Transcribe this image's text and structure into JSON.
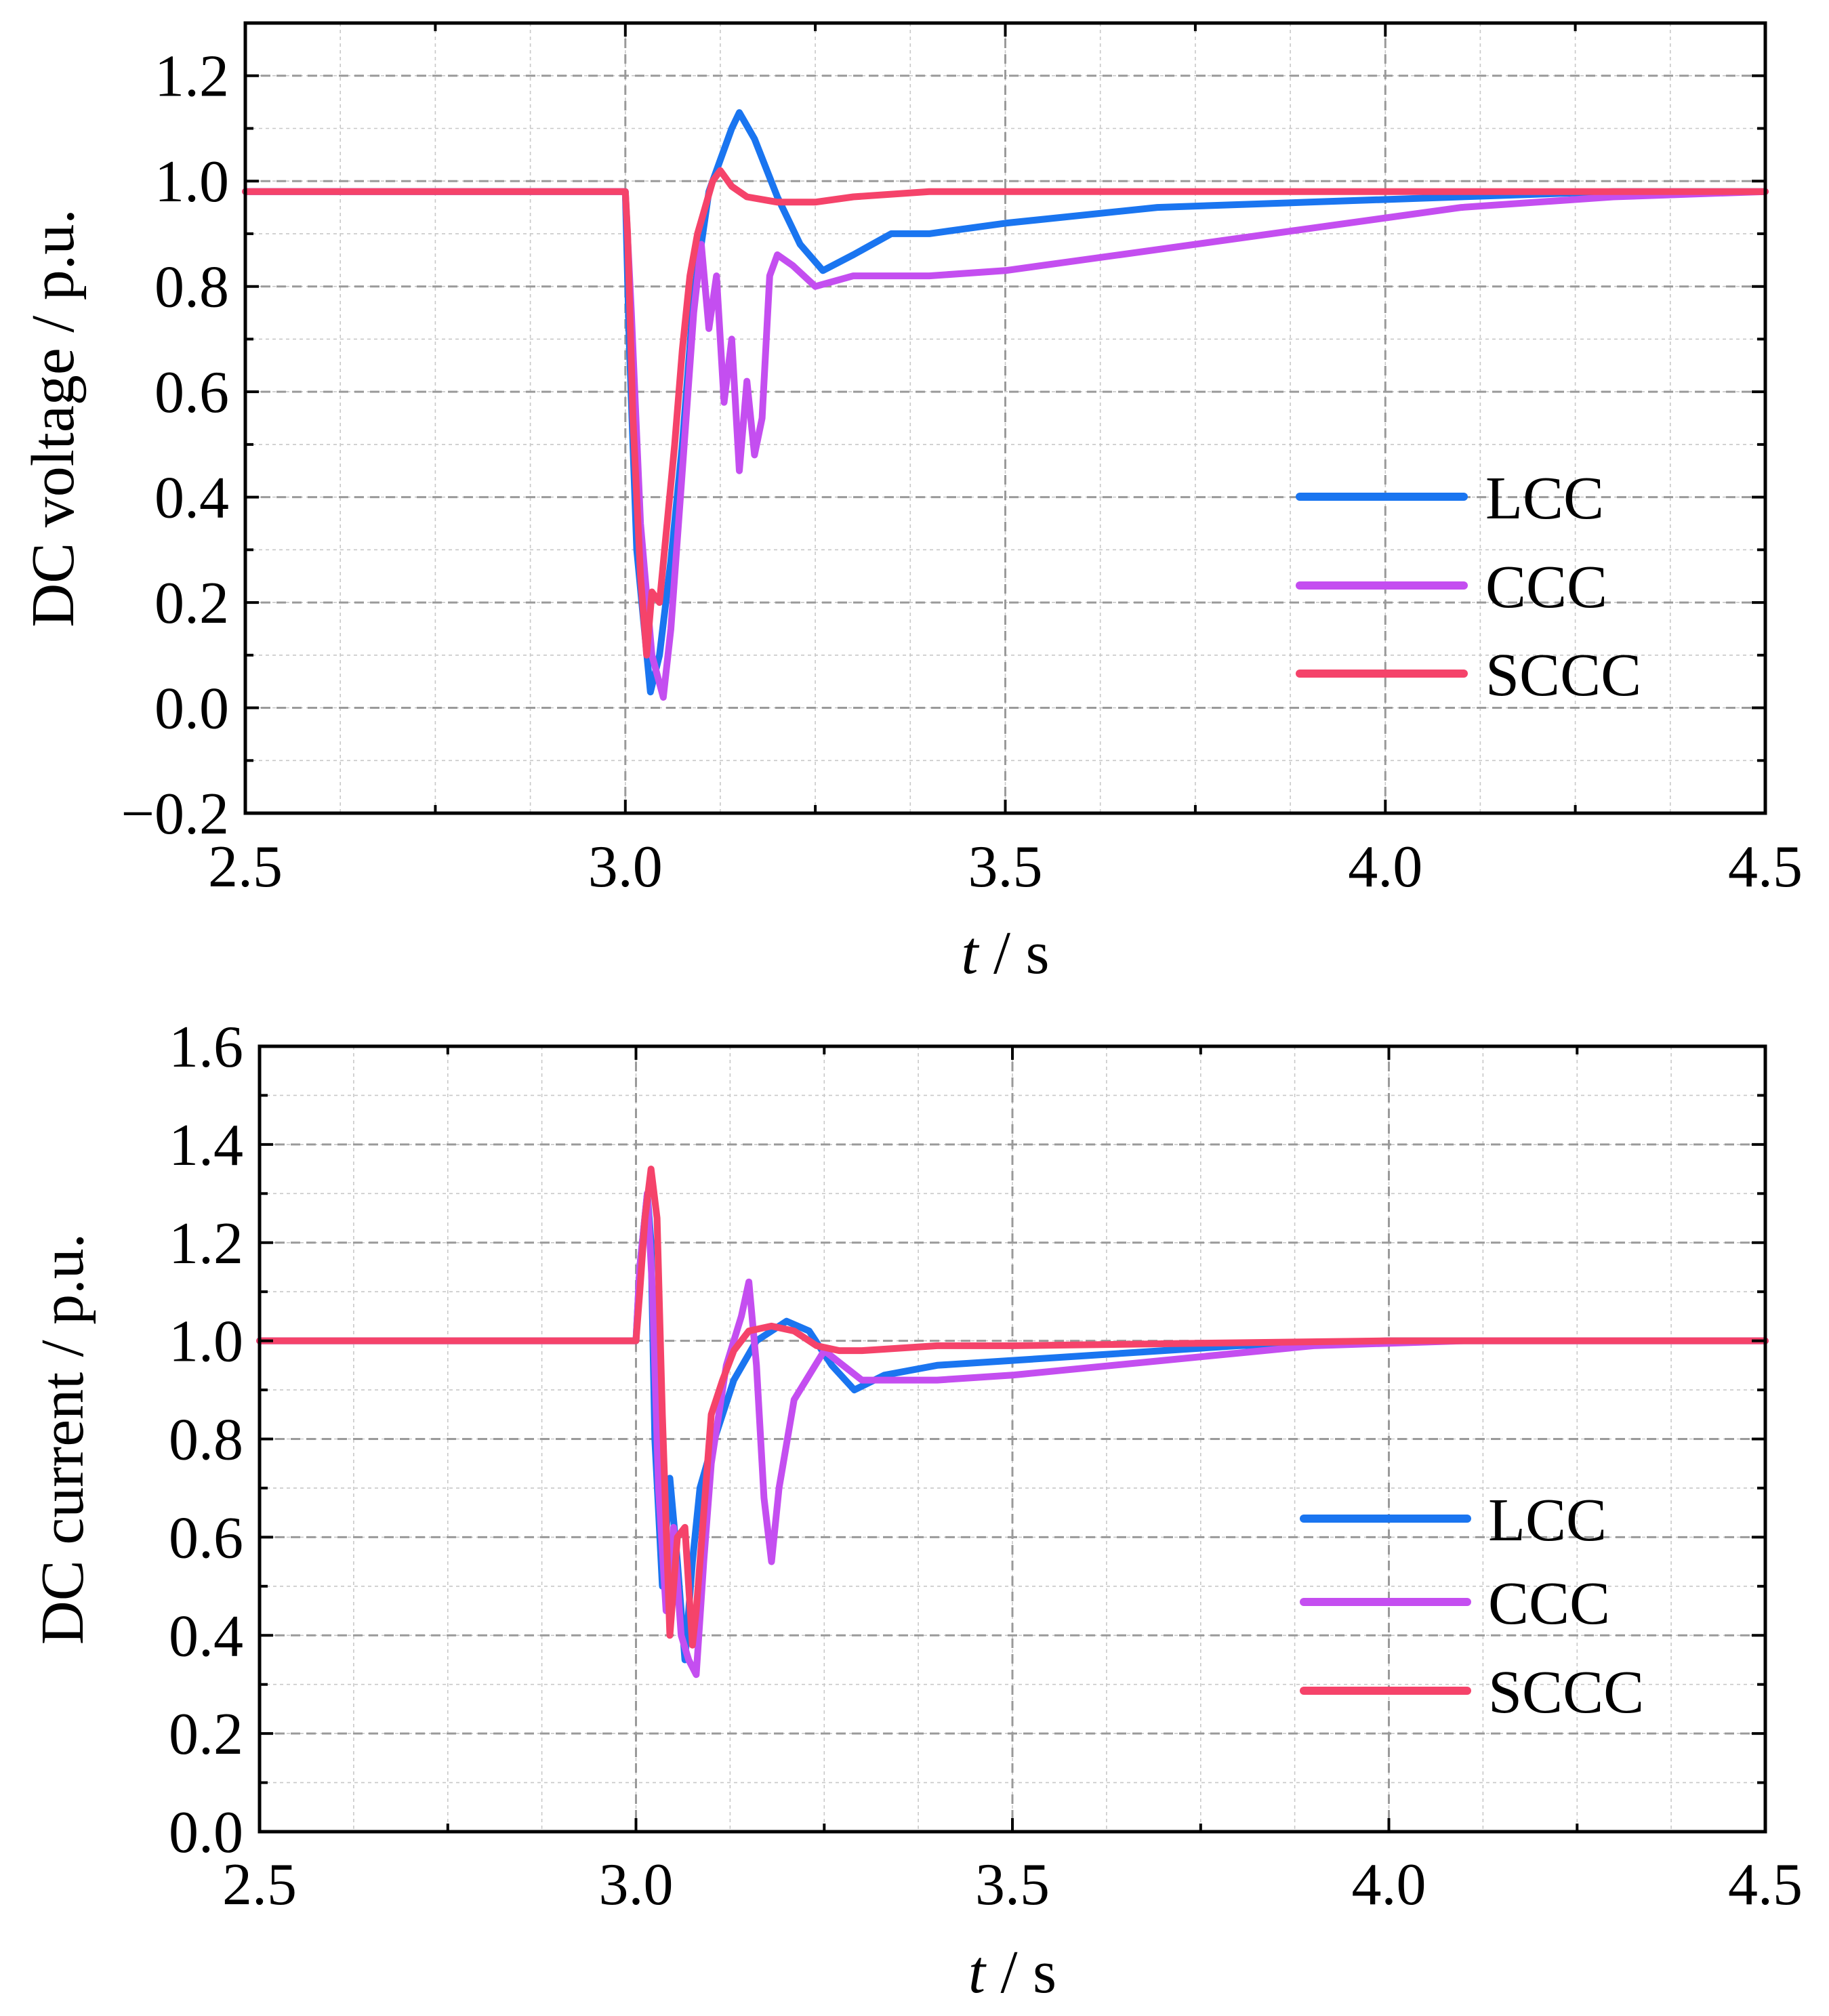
{
  "chart_data": [
    {
      "type": "line",
      "ylabel": "DC voltage / p.u.",
      "xlabel_italic": "t",
      "xlabel_rest": " / s",
      "xlim": [
        2.5,
        4.5
      ],
      "ylim": [
        -0.2,
        1.3
      ],
      "xticks": [
        "2.5",
        "3.0",
        "3.5",
        "4.0",
        "4.5"
      ],
      "xtick_values": [
        2.5,
        3.0,
        3.5,
        4.0,
        4.5
      ],
      "yticks": [
        "−0.2",
        "0.0",
        "0.2",
        "0.4",
        "0.6",
        "0.8",
        "1.0",
        "1.2"
      ],
      "ytick_values": [
        -0.2,
        0.0,
        0.2,
        0.4,
        0.6,
        0.8,
        1.0,
        1.2
      ],
      "grid": true,
      "legend_position": "bottom-right",
      "series": [
        {
          "name": "LCC",
          "color": "#1a75f0",
          "x": [
            2.5,
            3.0,
            3.005,
            3.015,
            3.025,
            3.033,
            3.045,
            3.06,
            3.075,
            3.09,
            3.11,
            3.125,
            3.14,
            3.15,
            3.17,
            3.2,
            3.23,
            3.26,
            3.3,
            3.35,
            3.4,
            3.5,
            3.7,
            3.9,
            4.1,
            4.3,
            4.5
          ],
          "y": [
            0.98,
            0.98,
            0.7,
            0.3,
            0.15,
            0.03,
            0.1,
            0.28,
            0.5,
            0.78,
            0.98,
            1.04,
            1.1,
            1.13,
            1.08,
            0.97,
            0.88,
            0.83,
            0.86,
            0.9,
            0.9,
            0.92,
            0.95,
            0.96,
            0.97,
            0.98,
            0.98
          ]
        },
        {
          "name": "CCC",
          "color": "#c44ef0",
          "x": [
            2.5,
            3.0,
            3.008,
            3.02,
            3.035,
            3.05,
            3.06,
            3.075,
            3.09,
            3.1,
            3.11,
            3.12,
            3.13,
            3.14,
            3.15,
            3.16,
            3.17,
            3.18,
            3.19,
            3.2,
            3.22,
            3.25,
            3.3,
            3.4,
            3.5,
            3.7,
            3.9,
            4.1,
            4.3,
            4.5
          ],
          "y": [
            0.98,
            0.98,
            0.75,
            0.35,
            0.1,
            0.02,
            0.15,
            0.45,
            0.75,
            0.88,
            0.72,
            0.82,
            0.58,
            0.7,
            0.45,
            0.62,
            0.48,
            0.55,
            0.82,
            0.86,
            0.84,
            0.8,
            0.82,
            0.82,
            0.83,
            0.87,
            0.91,
            0.95,
            0.97,
            0.98
          ]
        },
        {
          "name": "SCCC",
          "color": "#f5436a",
          "x": [
            2.5,
            3.0,
            3.003,
            3.01,
            3.02,
            3.028,
            3.035,
            3.045,
            3.055,
            3.065,
            3.075,
            3.085,
            3.095,
            3.105,
            3.115,
            3.125,
            3.14,
            3.16,
            3.2,
            3.25,
            3.3,
            3.4,
            3.5,
            3.7,
            4.0,
            4.5
          ],
          "y": [
            0.98,
            0.98,
            0.9,
            0.55,
            0.25,
            0.1,
            0.22,
            0.2,
            0.35,
            0.5,
            0.68,
            0.82,
            0.9,
            0.95,
            1.0,
            1.02,
            0.99,
            0.97,
            0.96,
            0.96,
            0.97,
            0.98,
            0.98,
            0.98,
            0.98,
            0.98
          ]
        }
      ]
    },
    {
      "type": "line",
      "ylabel": "DC current / p.u.",
      "xlabel_italic": "t",
      "xlabel_rest": " / s",
      "xlim": [
        2.5,
        4.5
      ],
      "ylim": [
        0.0,
        1.6
      ],
      "xticks": [
        "2.5",
        "3.0",
        "3.5",
        "4.0",
        "4.5"
      ],
      "xtick_values": [
        2.5,
        3.0,
        3.5,
        4.0,
        4.5
      ],
      "yticks": [
        "0.0",
        "0.2",
        "0.4",
        "0.6",
        "0.8",
        "1.0",
        "1.2",
        "1.4",
        "1.6"
      ],
      "ytick_values": [
        0.0,
        0.2,
        0.4,
        0.6,
        0.8,
        1.0,
        1.2,
        1.4,
        1.6
      ],
      "grid": true,
      "legend_position": "bottom-right",
      "series": [
        {
          "name": "LCC",
          "color": "#1a75f0",
          "x": [
            2.5,
            3.0,
            3.005,
            3.015,
            3.02,
            3.025,
            3.035,
            3.045,
            3.055,
            3.065,
            3.075,
            3.085,
            3.1,
            3.13,
            3.16,
            3.2,
            3.23,
            3.26,
            3.29,
            3.33,
            3.4,
            3.5,
            3.6,
            3.8,
            4.0,
            4.5
          ],
          "y": [
            1.0,
            1.0,
            1.15,
            1.3,
            1.2,
            0.8,
            0.5,
            0.72,
            0.55,
            0.35,
            0.55,
            0.7,
            0.78,
            0.92,
            1.0,
            1.04,
            1.02,
            0.95,
            0.9,
            0.93,
            0.95,
            0.96,
            0.97,
            0.99,
            1.0,
            1.0
          ]
        },
        {
          "name": "CCC",
          "color": "#c44ef0",
          "x": [
            2.5,
            3.0,
            3.005,
            3.015,
            3.022,
            3.03,
            3.04,
            3.05,
            3.06,
            3.07,
            3.08,
            3.09,
            3.1,
            3.12,
            3.14,
            3.15,
            3.16,
            3.17,
            3.18,
            3.19,
            3.21,
            3.25,
            3.3,
            3.4,
            3.5,
            3.7,
            3.9,
            4.1,
            4.5
          ],
          "y": [
            1.0,
            1.0,
            1.15,
            1.3,
            1.1,
            0.7,
            0.45,
            0.62,
            0.4,
            0.35,
            0.32,
            0.55,
            0.75,
            0.95,
            1.05,
            1.12,
            0.95,
            0.68,
            0.55,
            0.7,
            0.88,
            0.98,
            0.92,
            0.92,
            0.93,
            0.96,
            0.99,
            1.0,
            1.0
          ]
        },
        {
          "name": "SCCC",
          "color": "#f5436a",
          "x": [
            2.5,
            3.0,
            3.005,
            3.012,
            3.02,
            3.028,
            3.035,
            3.045,
            3.055,
            3.065,
            3.075,
            3.08,
            3.09,
            3.1,
            3.115,
            3.13,
            3.15,
            3.18,
            3.21,
            3.24,
            3.27,
            3.3,
            3.4,
            3.5,
            4.0,
            4.5
          ],
          "y": [
            1.0,
            1.0,
            1.1,
            1.25,
            1.35,
            1.25,
            0.85,
            0.4,
            0.6,
            0.62,
            0.38,
            0.45,
            0.65,
            0.85,
            0.92,
            0.98,
            1.02,
            1.03,
            1.02,
            0.99,
            0.98,
            0.98,
            0.99,
            0.99,
            1.0,
            1.0
          ]
        }
      ]
    }
  ]
}
